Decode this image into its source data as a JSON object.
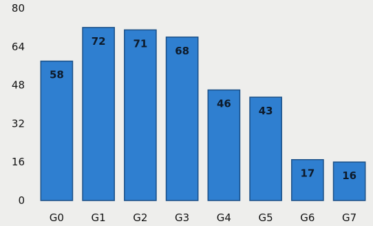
{
  "chart_data": {
    "type": "bar",
    "title": "",
    "xlabel": "",
    "ylabel": "",
    "categories": [
      "G0",
      "G1",
      "G2",
      "G3",
      "G4",
      "G5",
      "G6",
      "G7"
    ],
    "values": [
      58,
      72,
      71,
      68,
      46,
      43,
      17,
      16
    ],
    "data_labels": [
      "58",
      "72",
      "71",
      "68",
      "46",
      "43",
      "17",
      "16"
    ],
    "ylim": [
      0,
      80
    ],
    "yticks": [
      0,
      16,
      32,
      48,
      64,
      80
    ],
    "ytick_labels": [
      "0",
      "16",
      "32",
      "48",
      "64",
      "80"
    ],
    "grid": false,
    "legend": "none",
    "bar_color": "#2f7fd0",
    "bar_edge_color": "#1a4f86"
  }
}
